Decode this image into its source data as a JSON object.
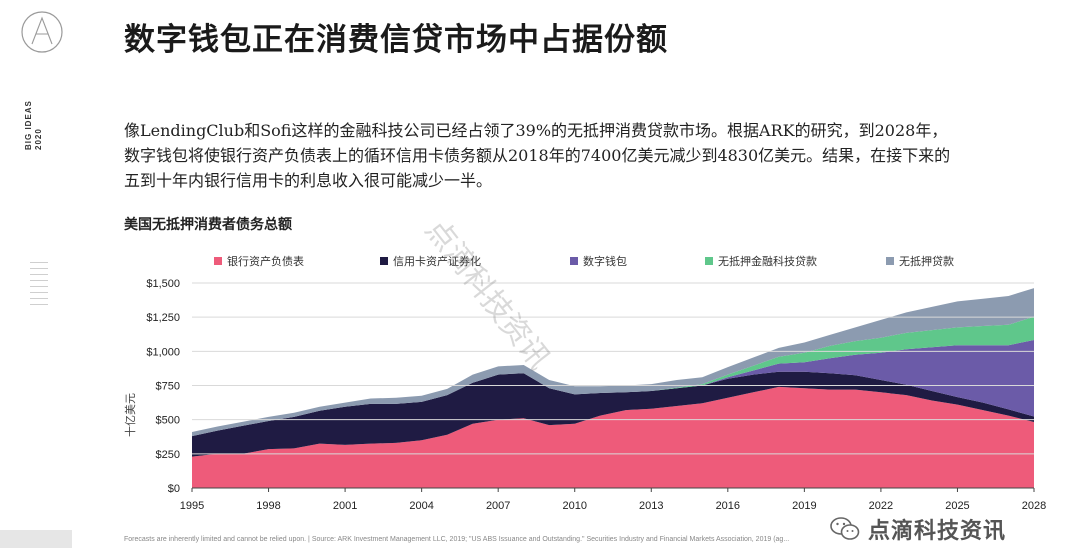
{
  "header": {
    "title": "数字钱包正在消费信贷市场中占据份额",
    "side_label_line1": "BIG IDEAS",
    "side_label_line2": "2020"
  },
  "intro": {
    "line1": "像LendingClub和Sofi这样的金融科技公司已经占领了39%的无抵押消费贷款市场。根据ARK的研究，到2028年，",
    "line2": "数字钱包将使银行资产负债表上的循环信用卡债务额从2018年的7400亿美元减少到4830亿美元。结果，在接下来的",
    "line3": "五到十年内银行信用卡的利息收入很可能减少一半。"
  },
  "watermark": "点滴科技资讯",
  "footnote": "Forecasts are inherently limited and cannot be relied upon.  |  Source: ARK Investment Management LLC, 2019; \"US ABS Issuance and Outstanding.\" Securities Industry and Financial Markets Association, 2019 (ag...",
  "brand": {
    "name": "点滴科技资讯",
    "icon": "wechat-icon"
  },
  "colors": {
    "bank": "#ee5b7a",
    "securitized": "#1f1b43",
    "wallet": "#6b5ba8",
    "fintech": "#5fc78b",
    "unsecured": "#8c9bb0"
  },
  "chart_data": {
    "type": "area",
    "stacked": true,
    "title": "美国无抵押消费者债务总额",
    "xlabel": "",
    "ylabel": "十亿美元",
    "ylim": [
      0,
      1500
    ],
    "yticks": [
      "$0",
      "$250",
      "$500",
      "$750",
      "$1,000",
      "$1,250",
      "$1,500"
    ],
    "yticks_values": [
      0,
      250,
      500,
      750,
      1000,
      1250,
      1500
    ],
    "xticks": [
      "1995",
      "1998",
      "2001",
      "2004",
      "2007",
      "2010",
      "2013",
      "2016",
      "2019",
      "2022",
      "2025",
      "2028"
    ],
    "legend_position": "top",
    "x": [
      1995,
      1996,
      1997,
      1998,
      1999,
      2000,
      2001,
      2002,
      2003,
      2004,
      2005,
      2006,
      2007,
      2008,
      2009,
      2010,
      2011,
      2012,
      2013,
      2014,
      2015,
      2016,
      2017,
      2018,
      2019,
      2020,
      2021,
      2022,
      2023,
      2024,
      2025,
      2026,
      2027,
      2028
    ],
    "series": [
      {
        "name": "银行资产负债表",
        "values": [
          230,
          250,
          250,
          285,
          290,
          325,
          315,
          325,
          330,
          350,
          390,
          470,
          500,
          510,
          460,
          470,
          530,
          570,
          580,
          600,
          620,
          660,
          700,
          740,
          730,
          720,
          720,
          700,
          680,
          640,
          610,
          570,
          530,
          483
        ]
      },
      {
        "name": "信用卡资产证券化",
        "values": [
          150,
          170,
          205,
          205,
          230,
          240,
          280,
          290,
          285,
          280,
          290,
          300,
          330,
          330,
          270,
          215,
          165,
          130,
          130,
          130,
          130,
          140,
          130,
          110,
          120,
          120,
          105,
          90,
          75,
          70,
          55,
          55,
          45,
          40
        ]
      },
      {
        "name": "数字钱包",
        "values": [
          0,
          0,
          0,
          0,
          0,
          0,
          0,
          0,
          0,
          0,
          0,
          0,
          0,
          0,
          0,
          0,
          0,
          0,
          0,
          0,
          0,
          10,
          30,
          60,
          70,
          110,
          150,
          200,
          260,
          320,
          380,
          420,
          470,
          560
        ]
      },
      {
        "name": "无抵押金融科技贷款",
        "values": [
          0,
          0,
          0,
          0,
          0,
          0,
          0,
          0,
          0,
          0,
          0,
          0,
          0,
          0,
          0,
          0,
          0,
          0,
          0,
          5,
          10,
          20,
          35,
          50,
          70,
          90,
          100,
          110,
          120,
          125,
          130,
          140,
          150,
          170
        ]
      },
      {
        "name": "无抵押贷款",
        "values": [
          30,
          30,
          30,
          30,
          30,
          30,
          30,
          40,
          45,
          45,
          45,
          60,
          60,
          60,
          60,
          60,
          50,
          50,
          50,
          55,
          50,
          55,
          60,
          65,
          75,
          80,
          100,
          130,
          150,
          170,
          190,
          200,
          210,
          210
        ]
      }
    ]
  }
}
